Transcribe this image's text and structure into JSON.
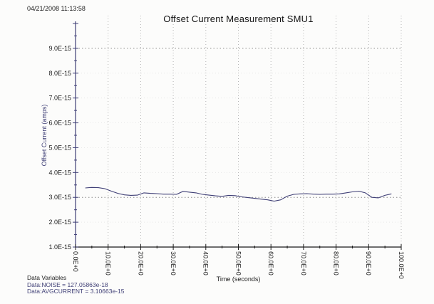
{
  "window": {
    "timestamp": "04/21/2008 11:13:58"
  },
  "chart_data": {
    "type": "line",
    "title": "Offset Current Measurement SMU1",
    "xlabel": "Time (seconds)",
    "ylabel": "Offset Current (amps)",
    "xlim": [
      0,
      100
    ],
    "ylim_e15": [
      1.0,
      10.0
    ],
    "y_unit": "A",
    "y_scale": "1e-15",
    "x_major_tick_step": 10,
    "x_minor_tick_step": 5,
    "y_major_tick_step_e15": 1.0,
    "y_minor_tick_step_e15": 0.5,
    "x_tick_labels": [
      "0.0E+0",
      "10.0E+0",
      "20.0E+0",
      "30.0E+0",
      "40.0E+0",
      "50.0E+0",
      "60.0E+0",
      "70.0E+0",
      "80.0E+0",
      "90.0E+0",
      "100.0E+0"
    ],
    "y_tick_labels": [
      "1.0E-15",
      "2.0E-15",
      "3.0E-15",
      "4.0E-15",
      "5.0E-15",
      "6.0E-15",
      "7.0E-15",
      "8.0E-15",
      "9.0E-15"
    ],
    "grid": "vertical dotted gridlines at every x major tick; emphasized dotted horizontal lines at 3.0E-15 and 9.0E-15",
    "emphasized_hlines_e15": [
      3.0,
      9.0
    ],
    "legend": "none",
    "series": [
      {
        "name": "offset-current",
        "color": "#3e3e75",
        "x": [
          3,
          5,
          7,
          9,
          11,
          13,
          15,
          17,
          19,
          21,
          23,
          25,
          27,
          29,
          31,
          33,
          35,
          37,
          39,
          41,
          43,
          45,
          47,
          49,
          51,
          53,
          55,
          57,
          59,
          61,
          63,
          65,
          67,
          69,
          71,
          73,
          75,
          77,
          79,
          81,
          83,
          85,
          87,
          89,
          91,
          93,
          95,
          97
        ],
        "y_e15": [
          3.38,
          3.4,
          3.39,
          3.35,
          3.25,
          3.16,
          3.1,
          3.08,
          3.09,
          3.18,
          3.16,
          3.15,
          3.13,
          3.13,
          3.12,
          3.24,
          3.21,
          3.18,
          3.12,
          3.09,
          3.06,
          3.04,
          3.08,
          3.07,
          3.02,
          2.99,
          2.96,
          2.93,
          2.9,
          2.85,
          2.9,
          3.05,
          3.12,
          3.14,
          3.15,
          3.13,
          3.12,
          3.13,
          3.13,
          3.14,
          3.18,
          3.22,
          3.25,
          3.18,
          3.0,
          2.98,
          3.08,
          3.14
        ]
      }
    ]
  },
  "footer": {
    "data_variables_title": "Data Variables",
    "noise_label": "Data:NOISE = 127.05863e-18",
    "avgcurrent_label": "Data:AVGCURRENT = 3.10663e-15"
  },
  "colors": {
    "navy_accent": "#3e3e75",
    "black_text": "#1c1c1c",
    "x_axis": "#1a1a1a",
    "v_grid": "#b4b4b4",
    "h_grid_faint": "#e8e8e8",
    "h_grid_emphasized": "#8a8a8a",
    "background": "#fcfcfb"
  }
}
